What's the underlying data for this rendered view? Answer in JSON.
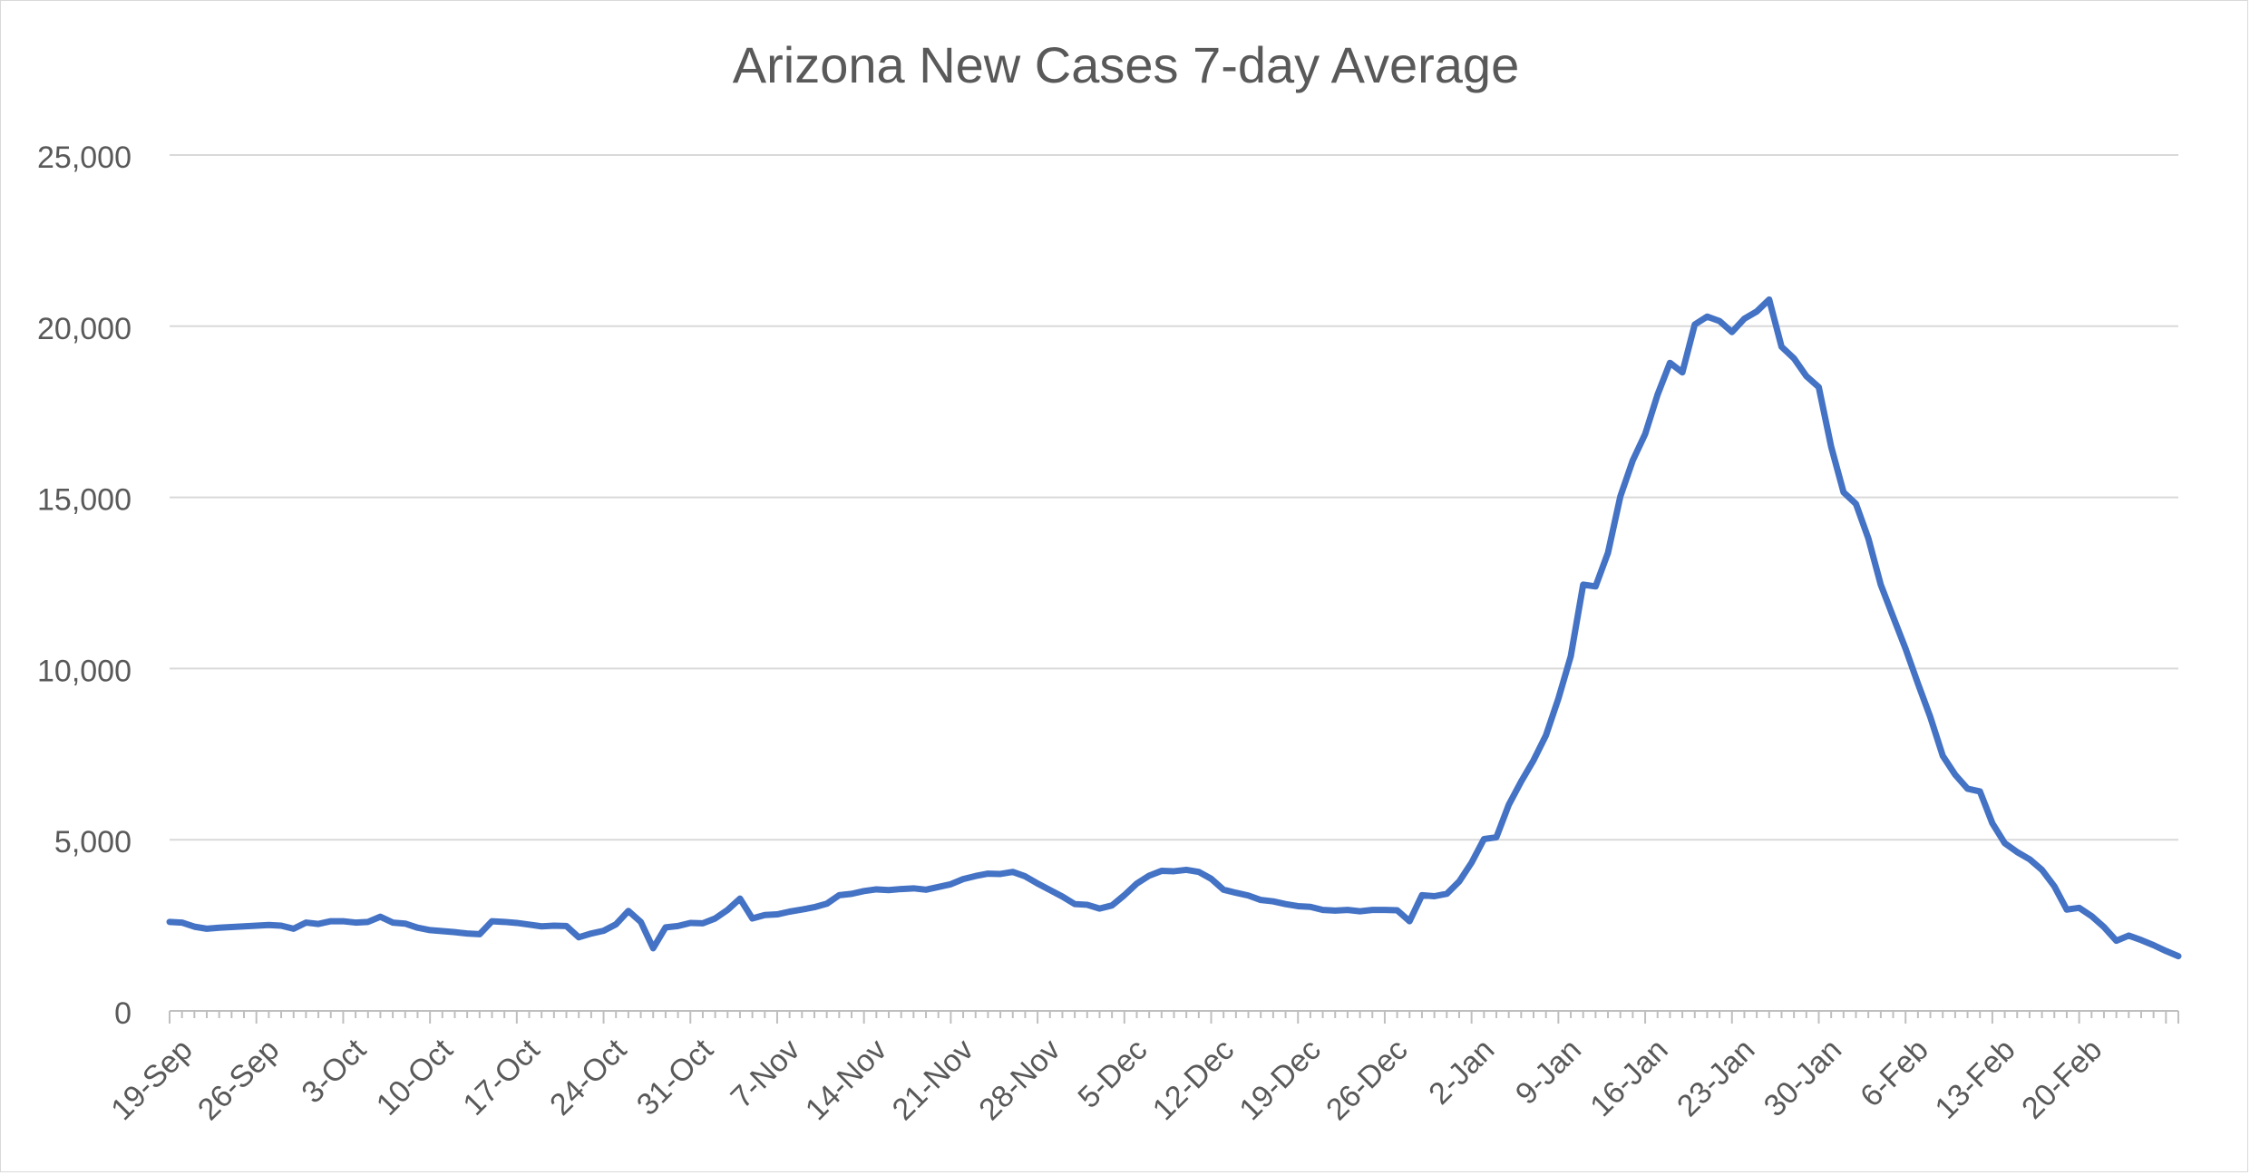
{
  "chart_data": {
    "type": "line",
    "title": "Arizona New Cases 7-day Average",
    "xlabel": "",
    "ylabel": "",
    "ylim": [
      0,
      25000
    ],
    "yticks": [
      0,
      5000,
      10000,
      15000,
      20000,
      25000
    ],
    "ytick_labels": [
      "0",
      "5,000",
      "10,000",
      "15,000",
      "20,000",
      "25,000"
    ],
    "grid": true,
    "legend": "none",
    "colors": {
      "line": "#4472C4",
      "grid": "#d9d9d9",
      "axis": "#bfbfbf",
      "text": "#595959"
    },
    "x_start": "19-Sep",
    "x_tick_labels": [
      "19-Sep",
      "26-Sep",
      "3-Oct",
      "10-Oct",
      "17-Oct",
      "24-Oct",
      "31-Oct",
      "7-Nov",
      "14-Nov",
      "21-Nov",
      "28-Nov",
      "5-Dec",
      "12-Dec",
      "19-Dec",
      "26-Dec",
      "2-Jan",
      "9-Jan",
      "16-Jan",
      "23-Jan",
      "30-Jan",
      "6-Feb",
      "13-Feb",
      "20-Feb"
    ],
    "series": [
      {
        "values": [
          2600,
          2580,
          2460,
          2400,
          2430,
          2450,
          2470,
          2490,
          2510,
          2490,
          2400,
          2580,
          2540,
          2620,
          2620,
          2580,
          2600,
          2750,
          2580,
          2550,
          2430,
          2360,
          2330,
          2300,
          2260,
          2240,
          2620,
          2600,
          2570,
          2520,
          2470,
          2490,
          2480,
          2150,
          2260,
          2340,
          2530,
          2920,
          2600,
          1830,
          2440,
          2480,
          2570,
          2560,
          2700,
          2950,
          3280,
          2700,
          2800,
          2820,
          2900,
          2960,
          3030,
          3130,
          3380,
          3420,
          3500,
          3550,
          3530,
          3560,
          3580,
          3540,
          3620,
          3700,
          3850,
          3940,
          4010,
          4000,
          4060,
          3930,
          3720,
          3530,
          3340,
          3120,
          3100,
          2990,
          3080,
          3380,
          3720,
          3950,
          4090,
          4080,
          4120,
          4060,
          3860,
          3540,
          3450,
          3370,
          3240,
          3200,
          3120,
          3060,
          3040,
          2950,
          2930,
          2950,
          2910,
          2950,
          2950,
          2940,
          2620,
          3380,
          3350,
          3420,
          3780,
          4330,
          5020,
          5070,
          6020,
          6700,
          7320,
          8050,
          9120,
          10360,
          12450,
          12400,
          13380,
          15030,
          16080,
          16850,
          18000,
          18930,
          18650,
          20050,
          20280,
          20150,
          19830,
          20220,
          20430,
          20780,
          19400,
          19060,
          18540,
          18220,
          16480,
          15150,
          14810,
          13800,
          12450,
          11510,
          10580,
          9560,
          8580,
          7450,
          6900,
          6490,
          6410,
          5480,
          4900,
          4640,
          4430,
          4120,
          3640,
          2960,
          3010,
          2770,
          2450,
          2050,
          2200,
          2070,
          1920,
          1750,
          1600
        ]
      }
    ]
  }
}
